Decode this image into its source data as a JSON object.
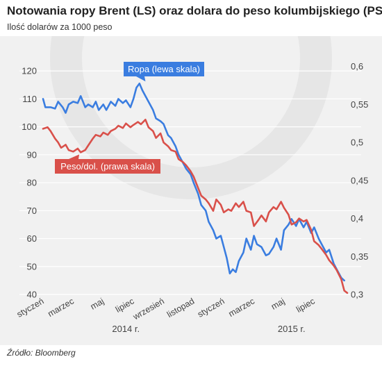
{
  "header": {
    "title": "Notowania ropy Brent (LS) oraz dolara do peso kolumbijskiego (PS)",
    "subtitle": "Ilość dolarów za 1000 peso"
  },
  "footer": {
    "source": "Źródło: Bloomberg"
  },
  "colors": {
    "brent": "#3a7de0",
    "peso": "#d9504a",
    "background": "#f1f1f1",
    "grid": "#ffffff"
  },
  "chart_data": {
    "type": "line",
    "title": "Notowania ropy Brent (LS) oraz dolara do peso kolumbijskiego (PS)",
    "subtitle": "Ilość dolarów za 1000 peso",
    "x_unit": "month index (0 = styczeń 2014)",
    "x_tick_labels": [
      "styczeń",
      "marzec",
      "maj",
      "lipiec",
      "wrzesień",
      "listopad",
      "styczeń",
      "marzec",
      "maj",
      "lipiec"
    ],
    "x_tick_positions": [
      0,
      2,
      4,
      6,
      8,
      10,
      12,
      14,
      16,
      18
    ],
    "year_labels": [
      {
        "label": "2014 r.",
        "x": 5.5
      },
      {
        "label": "2015 r.",
        "x": 16.5
      }
    ],
    "xlim": [
      0,
      20.2
    ],
    "left_axis": {
      "ticks": [
        40,
        50,
        60,
        70,
        80,
        90,
        100,
        110,
        120
      ],
      "ylim": [
        40,
        125
      ]
    },
    "right_axis": {
      "ticks": [
        "0,3",
        "0,35",
        "0,4",
        "0,45",
        "0,5",
        "0,55",
        "0,6"
      ],
      "tick_values": [
        0.3,
        0.35,
        0.4,
        0.45,
        0.5,
        0.55,
        0.6
      ],
      "ylim": [
        0.3,
        0.6125
      ]
    },
    "grid": "horizontal",
    "series": [
      {
        "name": "Ropa (lewa skala)",
        "axis": "left",
        "color": "#3a7de0",
        "x": [
          0,
          0.15,
          0.5,
          0.8,
          1.0,
          1.3,
          1.5,
          1.7,
          2.0,
          2.3,
          2.5,
          2.8,
          3.0,
          3.3,
          3.5,
          3.7,
          4.0,
          4.2,
          4.5,
          4.8,
          5.0,
          5.3,
          5.5,
          5.8,
          6.0,
          6.2,
          6.4,
          6.6,
          6.8,
          7.0,
          7.3,
          7.5,
          7.8,
          8.0,
          8.3,
          8.5,
          8.8,
          9.0,
          9.3,
          9.5,
          9.8,
          10.0,
          10.3,
          10.5,
          10.8,
          11.0,
          11.3,
          11.5,
          11.8,
          12.0,
          12.2,
          12.4,
          12.6,
          12.8,
          13.0,
          13.3,
          13.5,
          13.8,
          14.0,
          14.2,
          14.5,
          14.8,
          15.0,
          15.3,
          15.5,
          15.8,
          16.0,
          16.3,
          16.5,
          16.8,
          17.0,
          17.3,
          17.5,
          17.8,
          18.0,
          18.3,
          18.5,
          18.8,
          19.0,
          19.3,
          19.5,
          19.8,
          20.0
        ],
        "values": [
          110,
          107,
          107,
          106.5,
          109,
          107,
          105,
          108,
          109,
          108.5,
          111,
          107,
          108,
          107,
          109,
          106,
          108,
          106,
          109,
          107.5,
          110,
          108.5,
          109.5,
          107,
          110,
          114,
          115.5,
          113,
          111,
          109,
          106,
          103,
          102,
          101,
          97,
          96,
          93,
          90,
          87,
          85,
          83,
          80,
          76,
          72,
          70,
          66,
          63,
          60,
          61,
          57,
          53,
          47.5,
          49,
          48,
          52,
          55,
          60,
          56,
          61,
          58,
          57,
          54,
          54.5,
          57,
          60,
          56,
          63,
          65,
          67,
          64.5,
          67,
          64,
          66,
          62,
          64,
          60,
          58,
          55,
          56,
          51,
          49,
          46,
          45
        ]
      },
      {
        "name": "Peso/dol. (prawa skala)",
        "axis": "right",
        "color": "#d9504a",
        "x": [
          0,
          0.3,
          0.5,
          0.8,
          1.0,
          1.2,
          1.5,
          1.7,
          2.0,
          2.3,
          2.5,
          2.8,
          3.0,
          3.3,
          3.5,
          3.8,
          4.0,
          4.3,
          4.5,
          4.8,
          5.0,
          5.3,
          5.5,
          5.8,
          6.0,
          6.3,
          6.5,
          6.8,
          7.0,
          7.3,
          7.5,
          7.8,
          8.0,
          8.3,
          8.5,
          8.8,
          9.0,
          9.3,
          9.5,
          9.8,
          10.0,
          10.3,
          10.5,
          10.8,
          11.0,
          11.3,
          11.5,
          11.8,
          12.0,
          12.3,
          12.5,
          12.8,
          13.0,
          13.3,
          13.5,
          13.8,
          14.0,
          14.3,
          14.5,
          14.8,
          15.0,
          15.3,
          15.5,
          15.8,
          16.0,
          16.3,
          16.5,
          16.8,
          17.0,
          17.3,
          17.5,
          17.8,
          18.0,
          18.3,
          18.5,
          18.8,
          19.0,
          19.3,
          19.5,
          19.8,
          20.0,
          20.2
        ],
        "values": [
          0.518,
          0.52,
          0.515,
          0.505,
          0.5,
          0.493,
          0.497,
          0.49,
          0.488,
          0.492,
          0.487,
          0.49,
          0.496,
          0.505,
          0.51,
          0.508,
          0.513,
          0.51,
          0.515,
          0.518,
          0.522,
          0.519,
          0.525,
          0.52,
          0.523,
          0.527,
          0.524,
          0.53,
          0.52,
          0.515,
          0.506,
          0.512,
          0.5,
          0.495,
          0.49,
          0.488,
          0.478,
          0.474,
          0.47,
          0.462,
          0.455,
          0.44,
          0.43,
          0.425,
          0.42,
          0.41,
          0.425,
          0.418,
          0.408,
          0.412,
          0.41,
          0.42,
          0.415,
          0.422,
          0.41,
          0.408,
          0.39,
          0.398,
          0.404,
          0.396,
          0.408,
          0.415,
          0.412,
          0.422,
          0.414,
          0.405,
          0.392,
          0.395,
          0.4,
          0.396,
          0.398,
          0.385,
          0.37,
          0.365,
          0.36,
          0.352,
          0.345,
          0.338,
          0.332,
          0.32,
          0.305,
          0.302
        ]
      }
    ],
    "series_labels": [
      {
        "text": "Ropa (lewa skala)",
        "series": 0,
        "anchor_x": 6.8,
        "anchor_y_left": 115.5
      },
      {
        "text": "Peso/dol. (prawa skala)",
        "series": 1,
        "anchor_x": 2.4,
        "anchor_y_right": 0.487
      }
    ]
  }
}
